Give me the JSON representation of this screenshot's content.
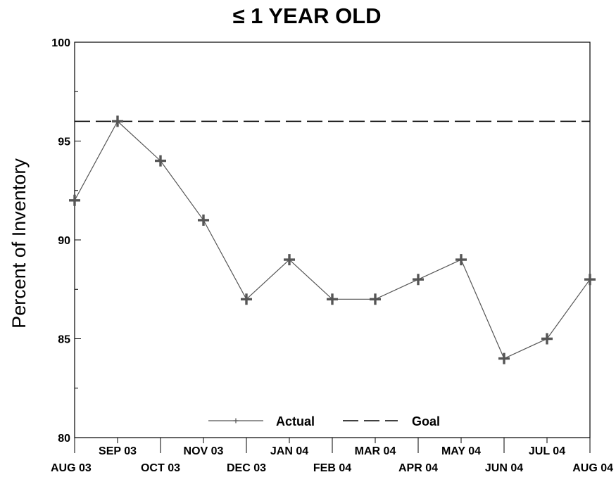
{
  "chart_data": {
    "type": "line",
    "title": "≤ 1 YEAR OLD",
    "xlabel": "",
    "ylabel": "Percent of Inventory",
    "ylim": [
      80,
      100
    ],
    "yticks": [
      80,
      85,
      90,
      95,
      100
    ],
    "categories": [
      "AUG 03",
      "SEP 03",
      "OCT 03",
      "NOV 03",
      "DEC 03",
      "JAN 04",
      "FEB 04",
      "MAR 04",
      "APR 04",
      "MAY 04",
      "JUN 04",
      "JUL 04",
      "AUG 04"
    ],
    "series": [
      {
        "name": "Actual",
        "values": [
          92,
          96,
          94,
          91,
          87,
          89,
          87,
          87,
          88,
          89,
          84,
          85,
          88
        ],
        "color": "#555555",
        "marker": "plus",
        "line_style": "solid"
      },
      {
        "name": "Goal",
        "value": 96,
        "color": "#000000",
        "line_style": "dashed"
      }
    ],
    "legend_position": "bottom-center",
    "grid": false
  }
}
